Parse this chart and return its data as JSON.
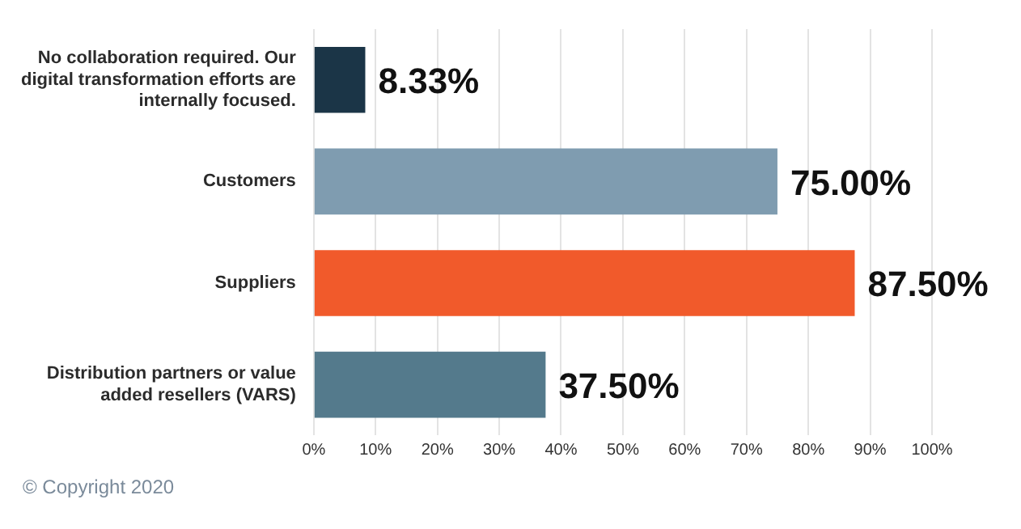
{
  "chart_data": {
    "type": "bar",
    "orientation": "horizontal",
    "categories": [
      "No collaboration required. Our digital transformation efforts are internally focused.",
      "Customers",
      "Suppliers",
      "Distribution partners or value added resellers (VARS)"
    ],
    "values": [
      8.33,
      75.0,
      87.5,
      37.5
    ],
    "colors": [
      "#1b3547",
      "#7f9cb0",
      "#f15a2b",
      "#547a8c"
    ],
    "value_labels": [
      "8.33%",
      "75.00%",
      "87.50%",
      "37.50%"
    ],
    "xlim": [
      0,
      100
    ],
    "xticks": [
      {
        "value": 0,
        "label": "0%"
      },
      {
        "value": 10,
        "label": "10%"
      },
      {
        "value": 20,
        "label": "20%"
      },
      {
        "value": 30,
        "label": "30%"
      },
      {
        "value": 40,
        "label": "40%"
      },
      {
        "value": 50,
        "label": "50%"
      },
      {
        "value": 60,
        "label": "60%"
      },
      {
        "value": 70,
        "label": "70%"
      },
      {
        "value": 80,
        "label": "80%"
      },
      {
        "value": 90,
        "label": "90%"
      },
      {
        "value": 100,
        "label": "100%"
      }
    ],
    "grid": "x",
    "legend": false,
    "annotations": [
      "© Copyright 2020"
    ]
  }
}
